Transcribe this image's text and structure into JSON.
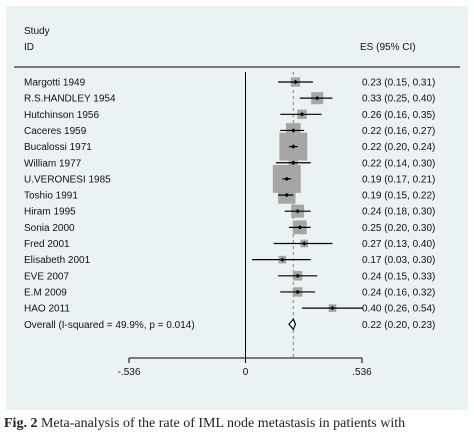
{
  "header": {
    "study": "Study",
    "id": "ID",
    "es": "ES (95% CI)"
  },
  "caption": {
    "label": "Fig. 2",
    "text": "Meta-analysis of the rate of IML node metastasis in patients with"
  },
  "chart_data": {
    "type": "forest",
    "xlabel": "",
    "x_ticks": [
      -0.536,
      0,
      0.536
    ],
    "x_tick_labels": [
      "-.536",
      "0",
      ".536"
    ],
    "xlim": [
      -0.536,
      0.536
    ],
    "null_line": 0,
    "overall_line": 0.22,
    "studies": [
      {
        "label": "Margotti  1949",
        "es": 0.23,
        "lo": 0.15,
        "hi": 0.31,
        "ci_text": "0.23 (0.15, 0.31)",
        "weight": 1.0
      },
      {
        "label": "R.S.HANDLEY  1954",
        "es": 0.33,
        "lo": 0.25,
        "hi": 0.4,
        "ci_text": "0.33 (0.25, 0.40)",
        "weight": 1.6
      },
      {
        "label": "Hutchinson  1956",
        "es": 0.26,
        "lo": 0.16,
        "hi": 0.35,
        "ci_text": "0.26 (0.16, 0.35)",
        "weight": 1.0
      },
      {
        "label": "Caceres  1959",
        "es": 0.22,
        "lo": 0.16,
        "hi": 0.27,
        "ci_text": "0.22 (0.16, 0.27)",
        "weight": 2.2
      },
      {
        "label": "Bucalossi  1971",
        "es": 0.22,
        "lo": 0.2,
        "hi": 0.24,
        "ci_text": "0.22 (0.20, 0.24)",
        "weight": 5.2
      },
      {
        "label": "William  1977",
        "es": 0.22,
        "lo": 0.14,
        "hi": 0.3,
        "ci_text": "0.22 (0.14, 0.30)",
        "weight": 1.0
      },
      {
        "label": "U.VERONESI  1985",
        "es": 0.19,
        "lo": 0.17,
        "hi": 0.21,
        "ci_text": "0.19 (0.17, 0.21)",
        "weight": 5.2
      },
      {
        "label": "Toshio  1991",
        "es": 0.19,
        "lo": 0.15,
        "hi": 0.22,
        "ci_text": "0.19 (0.15, 0.22)",
        "weight": 2.8
      },
      {
        "label": "Hiram  1995",
        "es": 0.24,
        "lo": 0.18,
        "hi": 0.3,
        "ci_text": "0.24 (0.18, 0.30)",
        "weight": 1.8
      },
      {
        "label": "Sonia  2000",
        "es": 0.25,
        "lo": 0.2,
        "hi": 0.3,
        "ci_text": "0.25 (0.20, 0.30)",
        "weight": 2.0
      },
      {
        "label": "Fred  2001",
        "es": 0.27,
        "lo": 0.13,
        "hi": 0.4,
        "ci_text": "0.27 (0.13, 0.40)",
        "weight": 0.6
      },
      {
        "label": "Elisabeth  2001",
        "es": 0.17,
        "lo": 0.03,
        "hi": 0.3,
        "ci_text": "0.17 (0.03, 0.30)",
        "weight": 0.6
      },
      {
        "label": "EVE  2007",
        "es": 0.24,
        "lo": 0.15,
        "hi": 0.33,
        "ci_text": "0.24 (0.15, 0.33)",
        "weight": 1.0
      },
      {
        "label": "E.M  2009",
        "es": 0.24,
        "lo": 0.16,
        "hi": 0.32,
        "ci_text": "0.24 (0.16, 0.32)",
        "weight": 1.0
      },
      {
        "label": "HAO  2011",
        "es": 0.4,
        "lo": 0.26,
        "hi": 0.54,
        "ci_text": "0.40 (0.26, 0.54)",
        "weight": 0.6
      }
    ],
    "overall": {
      "label": "Overall  (I-squared = 49.9%, p = 0.014)",
      "es": 0.22,
      "lo": 0.2,
      "hi": 0.23,
      "ci_text": "0.22 (0.20, 0.23)"
    },
    "colors": {
      "background": "#eaf2f3",
      "weight_box": "#a6a6a6",
      "line": "#000000",
      "overall_line": "#808080"
    }
  }
}
